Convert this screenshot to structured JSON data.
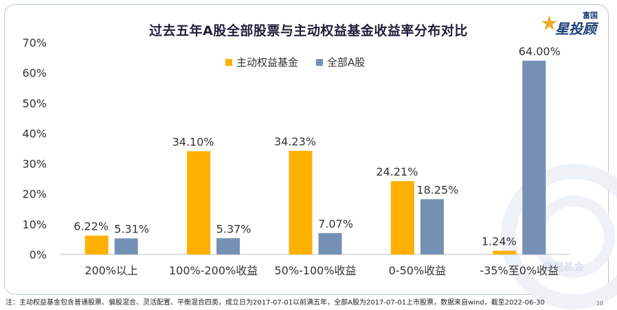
{
  "chart_data": {
    "type": "bar",
    "title": "过去五年A股全部股票与主动权益基金收益率分布对比",
    "categories": [
      "200%以上",
      "100%-200%收益",
      "50%-100%收益",
      "0-50%收益",
      "-35%至0%收益"
    ],
    "series": [
      {
        "name": "主动权益基金",
        "color": "#ffb000",
        "values": [
          6.22,
          34.1,
          34.23,
          24.21,
          1.24
        ],
        "labels": [
          "6.22%",
          "34.10%",
          "34.23%",
          "24.21%",
          "1.24%"
        ]
      },
      {
        "name": "全部A股",
        "color": "#7490b5",
        "values": [
          5.31,
          5.37,
          7.07,
          18.25,
          64.0
        ],
        "labels": [
          "5.31%",
          "5.37%",
          "7.07%",
          "18.25%",
          "64.00%"
        ]
      }
    ],
    "ylim": [
      0,
      70
    ],
    "yticks": [
      "0%",
      "10%",
      "20%",
      "30%",
      "40%",
      "50%",
      "60%",
      "70%"
    ],
    "grid": false,
    "legend_position": "top-center"
  },
  "logo": {
    "sub": "富国",
    "main": "星投顾"
  },
  "watermark": "富国基金",
  "footnote": "注：主动权益基金包含普通股票、偏股混合、灵活配置、平衡混合四类，成立日为2017-07-01以前满五年，全部A股为2017-07-01上市股票，数据来自wind，截至2022-06-30",
  "page_number": "10"
}
